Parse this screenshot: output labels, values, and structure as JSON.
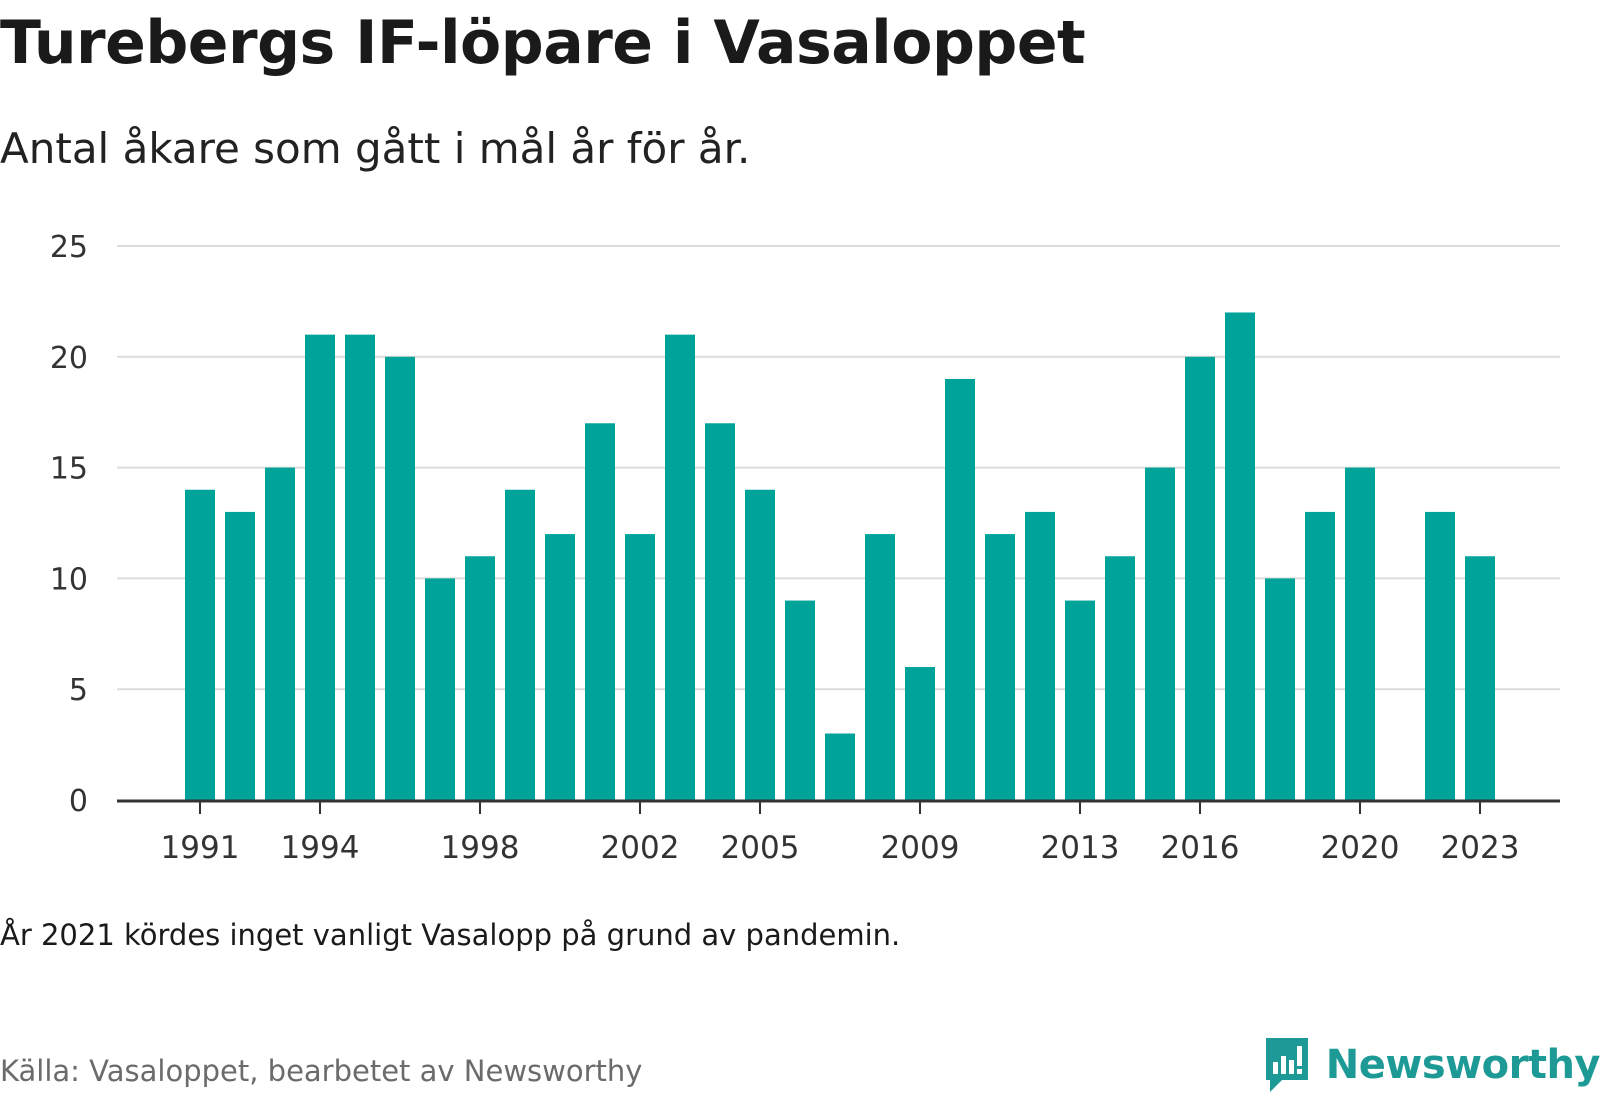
{
  "chart_data": {
    "type": "bar",
    "title": "Turebergs IF-löpare i Vasaloppet",
    "subtitle": "Antal åkare som gått i mål år för år.",
    "x": [
      1991,
      1992,
      1993,
      1994,
      1995,
      1996,
      1997,
      1998,
      1999,
      2000,
      2001,
      2002,
      2003,
      2004,
      2005,
      2006,
      2007,
      2008,
      2009,
      2010,
      2011,
      2012,
      2013,
      2014,
      2015,
      2016,
      2017,
      2018,
      2019,
      2020,
      2021,
      2022,
      2023
    ],
    "values": [
      14,
      13,
      15,
      21,
      21,
      20,
      10,
      11,
      14,
      12,
      17,
      12,
      21,
      17,
      14,
      9,
      3,
      12,
      6,
      19,
      12,
      13,
      9,
      11,
      15,
      20,
      22,
      10,
      13,
      15,
      null,
      13,
      11
    ],
    "xticks": [
      1991,
      1994,
      1998,
      2002,
      2005,
      2009,
      2013,
      2016,
      2020,
      2023
    ],
    "yticks": [
      0,
      5,
      10,
      15,
      20,
      25
    ],
    "ylim": [
      0,
      25
    ],
    "grid": true,
    "bar_color": "#00a39a",
    "xlabel": "",
    "ylabel": ""
  },
  "note": "År 2021 kördes inget vanligt Vasalopp på grund av pandemin.",
  "source": "Källa: Vasaloppet, bearbetet av Newsworthy",
  "brand": {
    "name": "Newsworthy",
    "icon": "newsworthy-logo-icon",
    "color": "#1d9a96"
  }
}
